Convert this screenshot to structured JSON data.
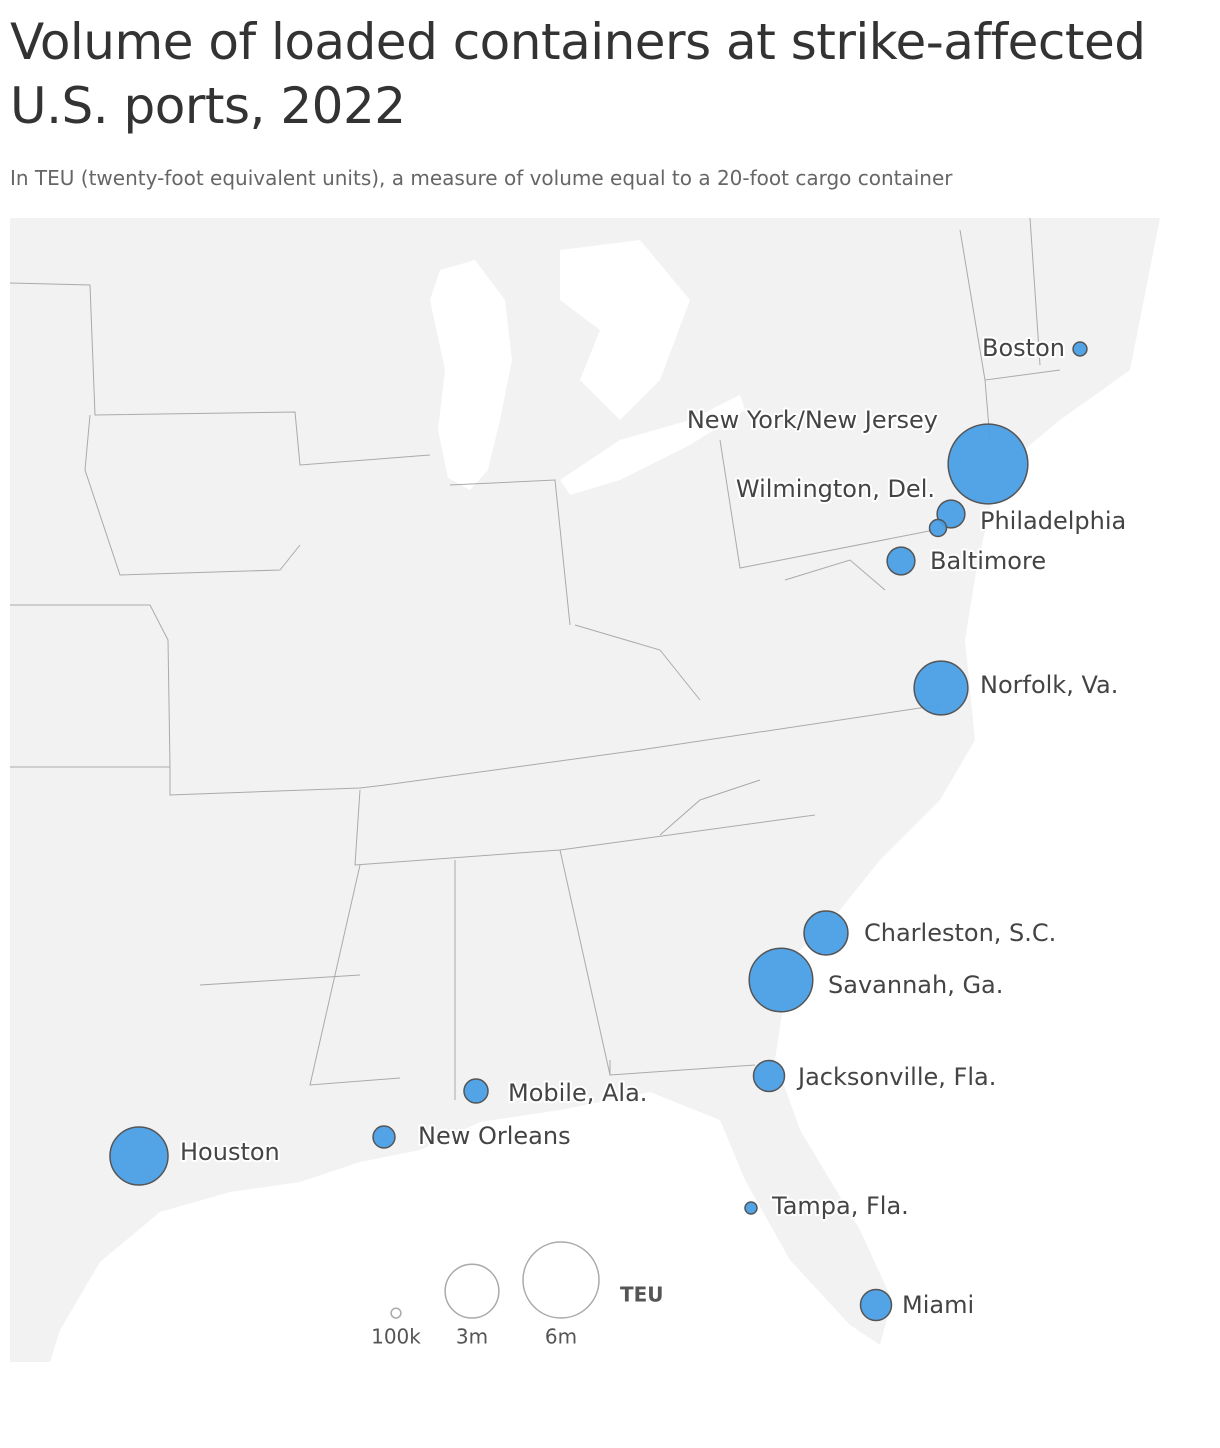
{
  "title": "Volume of loaded containers at strike-affected U.S. ports, 2022",
  "subtitle": "In TEU (twenty-foot equivalent units), a measure of volume equal to a 20-foot cargo container",
  "ports": [
    {
      "name": "Boston",
      "value": 200000
    },
    {
      "name": "New York/New Jersey",
      "value": 6600000
    },
    {
      "name": "Wilmington, Del.",
      "value": 300000
    },
    {
      "name": "Philadelphia",
      "value": 800000
    },
    {
      "name": "Baltimore",
      "value": 800000
    },
    {
      "name": "Norfolk, Va.",
      "value": 3000000
    },
    {
      "name": "Charleston, S.C.",
      "value": 2000000
    },
    {
      "name": "Savannah, Ga.",
      "value": 4200000
    },
    {
      "name": "Jacksonville, Fla.",
      "value": 1000000
    },
    {
      "name": "Miami",
      "value": 1000000
    },
    {
      "name": "Tampa, Fla.",
      "value": 150000
    },
    {
      "name": "Mobile, Ala.",
      "value": 600000
    },
    {
      "name": "New Orleans",
      "value": 500000
    },
    {
      "name": "Houston",
      "value": 3500000
    }
  ],
  "color": "#4a9ee6",
  "legend": {
    "title": "TEU",
    "sizes": [
      {
        "value": 100000,
        "label": "100k"
      },
      {
        "value": 3000000,
        "label": "3m"
      },
      {
        "value": 6000000,
        "label": "6m"
      }
    ]
  }
}
